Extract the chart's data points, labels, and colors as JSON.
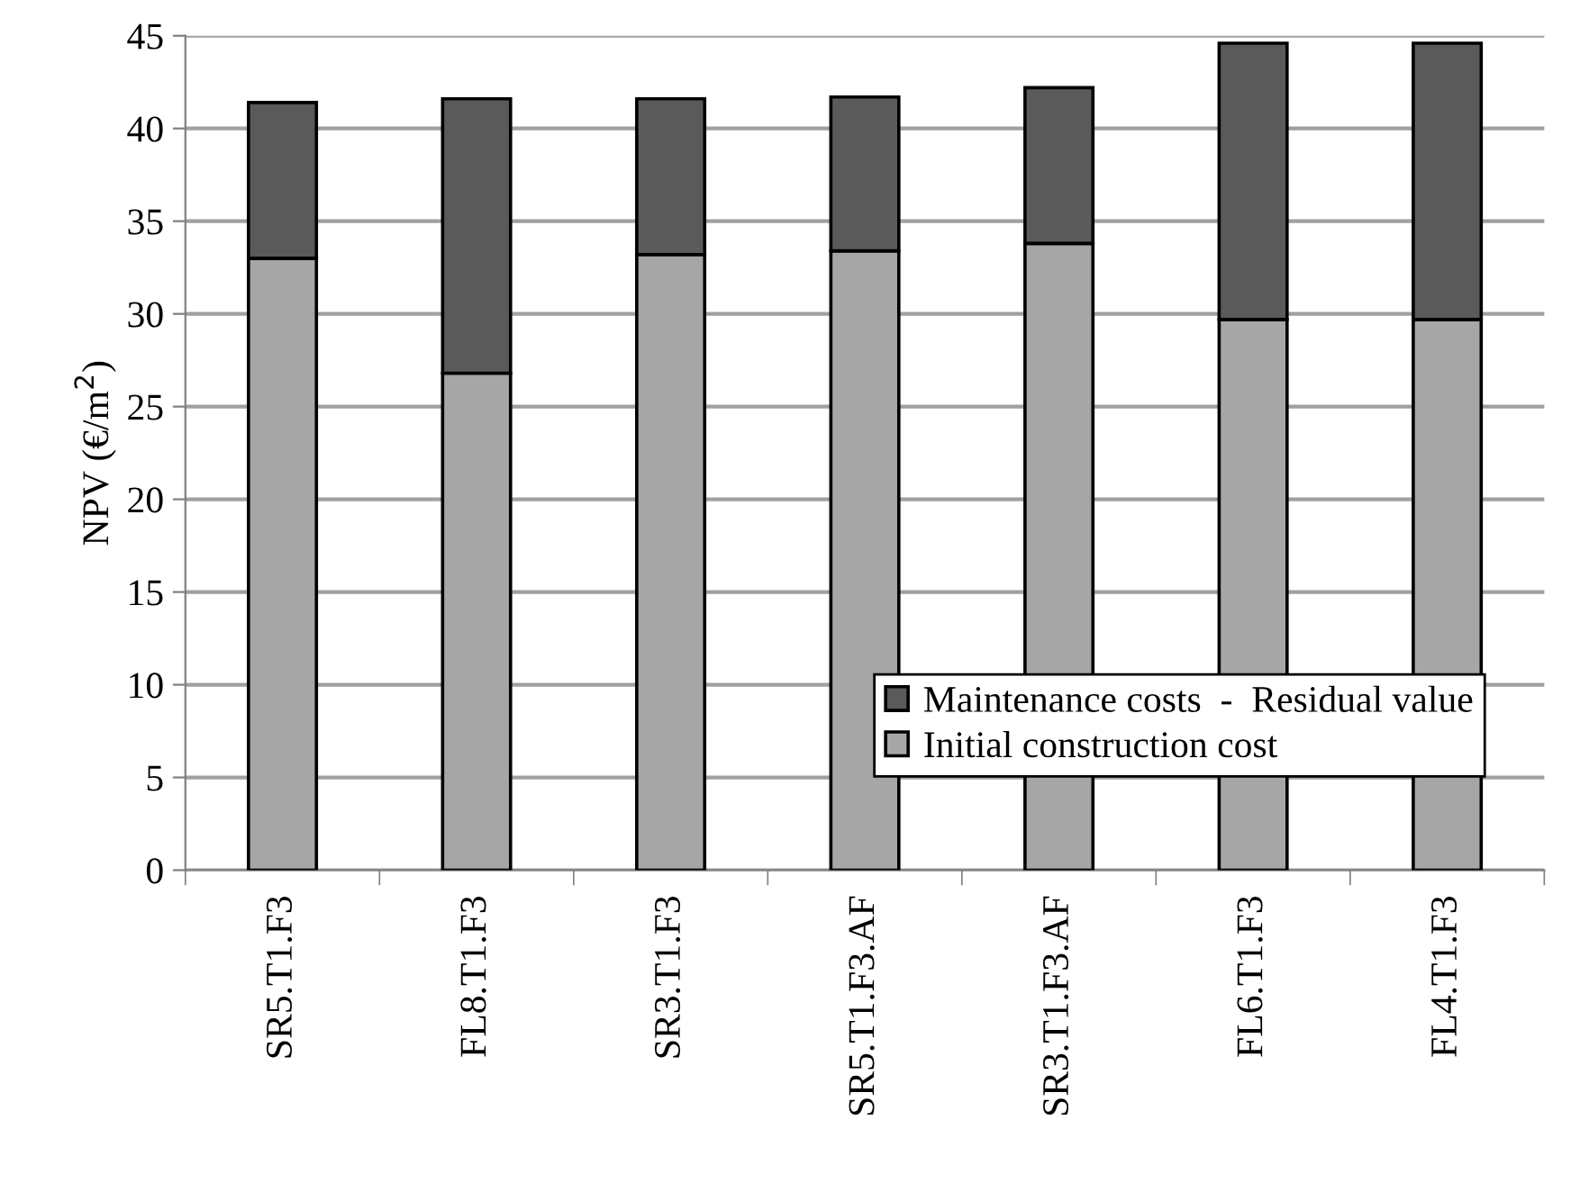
{
  "chart_data": {
    "type": "bar",
    "stacked": true,
    "ylabel": "NPV (€/m$^{2}$)",
    "categories": [
      "SR5.T1.F3",
      "FL8.T1.F3",
      "SR3.T1.F3",
      "SR5.T1.F3.AF",
      "SR3.T1.F3.AF",
      "FL6.T1.F3",
      "FL4.T1.F3"
    ],
    "series": [
      {
        "name": "Initial construction cost",
        "color": "#a6a6a6",
        "values": [
          33.0,
          26.8,
          33.2,
          33.4,
          33.8,
          29.7,
          29.7
        ]
      },
      {
        "name": "Maintenance costs  -  Residual value",
        "color": "#5a5a5a",
        "values": [
          8.4,
          14.8,
          8.4,
          8.3,
          8.4,
          14.9,
          14.9
        ]
      }
    ],
    "ylim": [
      0,
      45
    ],
    "yticks": [
      0,
      5,
      10,
      15,
      20,
      25,
      30,
      35,
      40,
      45
    ],
    "grid": "y",
    "legend": "lower right"
  }
}
